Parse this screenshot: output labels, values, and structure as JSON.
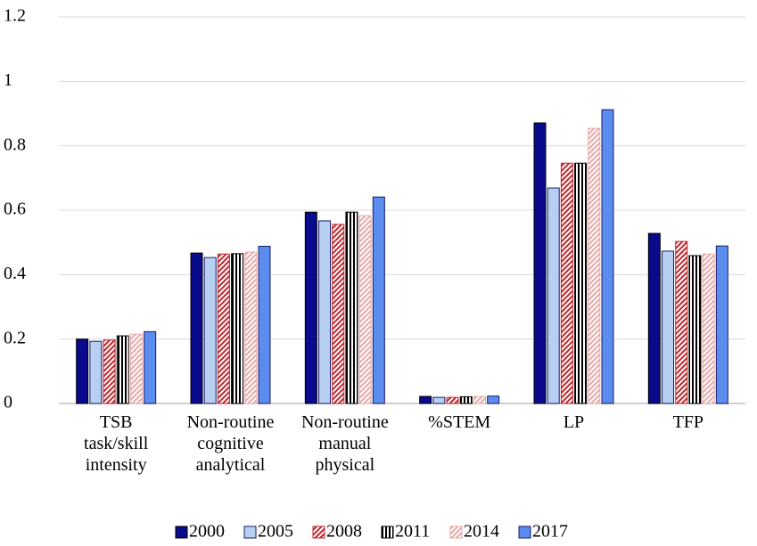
{
  "chart_data": {
    "type": "bar",
    "categories": [
      "TSB\ntask/skill\nintensity",
      "Non-routine\ncognitive\nanalytical",
      "Non-routine\nmanual\nphysical",
      "%STEM",
      "LP",
      "TFP"
    ],
    "series": [
      {
        "name": "2000",
        "color": "#0a0a8c",
        "hatch": "none",
        "values": [
          0.2,
          0.467,
          0.594,
          0.022,
          0.871,
          0.528
        ]
      },
      {
        "name": "2005",
        "color": "#b7d0f2",
        "hatch": "none",
        "values": [
          0.193,
          0.453,
          0.567,
          0.019,
          0.669,
          0.473
        ]
      },
      {
        "name": "2008",
        "color": "#c0262c",
        "hatch": "diagonal",
        "values": [
          0.197,
          0.464,
          0.556,
          0.019,
          0.746,
          0.503
        ]
      },
      {
        "name": "2011",
        "color": "#000000",
        "hatch": "vertical",
        "values": [
          0.21,
          0.465,
          0.594,
          0.021,
          0.746,
          0.459
        ]
      },
      {
        "name": "2014",
        "color": "#e8a8a8",
        "hatch": "diagonal",
        "values": [
          0.215,
          0.47,
          0.583,
          0.022,
          0.854,
          0.464
        ]
      },
      {
        "name": "2017",
        "color": "#5b8def",
        "hatch": "none",
        "values": [
          0.223,
          0.488,
          0.641,
          0.023,
          0.912,
          0.489
        ]
      }
    ],
    "ylim": [
      0,
      1.2
    ],
    "yticks": [
      0,
      0.2,
      0.4,
      0.6,
      0.8,
      1,
      1.2
    ],
    "grid": true,
    "legend": "bottom"
  }
}
